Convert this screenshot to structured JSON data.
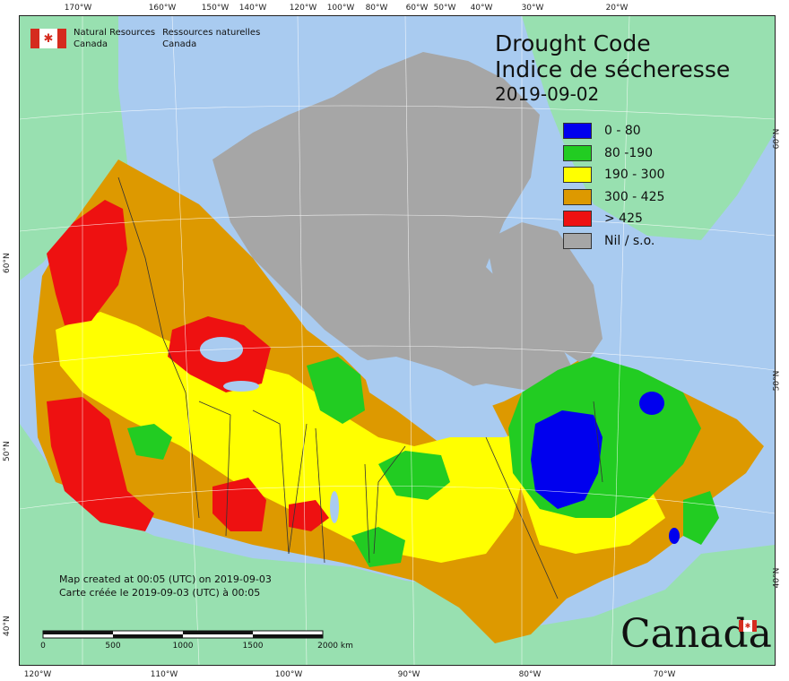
{
  "map": {
    "title": "Drought Code",
    "title_fr": "Indice de sécheresse",
    "date": "2019-09-02",
    "legend": [
      {
        "label": "0 - 80",
        "color": "#0000ee"
      },
      {
        "label": "80 -190",
        "color": "#22cc22"
      },
      {
        "label": "190 - 300",
        "color": "#ffff00"
      },
      {
        "label": "300 - 425",
        "color": "#dd9900"
      },
      {
        "label": "> 425",
        "color": "#ee1111"
      },
      {
        "label": "Nil / s.o.",
        "color": "#a6a6a6"
      }
    ],
    "background_colors": {
      "water": "#a9cbf0",
      "other_land": "#98e0b0"
    }
  },
  "org": {
    "name_en_1": "Natural Resources",
    "name_en_2": "Canada",
    "name_fr_1": "Ressources naturelles",
    "name_fr_2": "Canada"
  },
  "credit": {
    "line1": "Map created at 00:05 (UTC) on 2019-09-03",
    "line2": "Carte créée le 2019-09-03 (UTC) à 00:05"
  },
  "scale": {
    "labels": [
      "0",
      "500",
      "1000",
      "1500",
      "2000  km"
    ]
  },
  "axes": {
    "top": [
      "170°W",
      "160°W",
      "150°W",
      "140°W",
      "120°W",
      "100°W",
      "80°W",
      "60°W",
      "50°W",
      "40°W",
      "30°W",
      "20°W"
    ],
    "bottom": [
      "120°W",
      "110°W",
      "100°W",
      "90°W",
      "80°W",
      "70°W"
    ],
    "left": [
      "60°N",
      "50°N",
      "40°N"
    ],
    "right": [
      "60°N",
      "50°N",
      "40°N"
    ]
  },
  "logo": {
    "wordmark": "Canada"
  }
}
